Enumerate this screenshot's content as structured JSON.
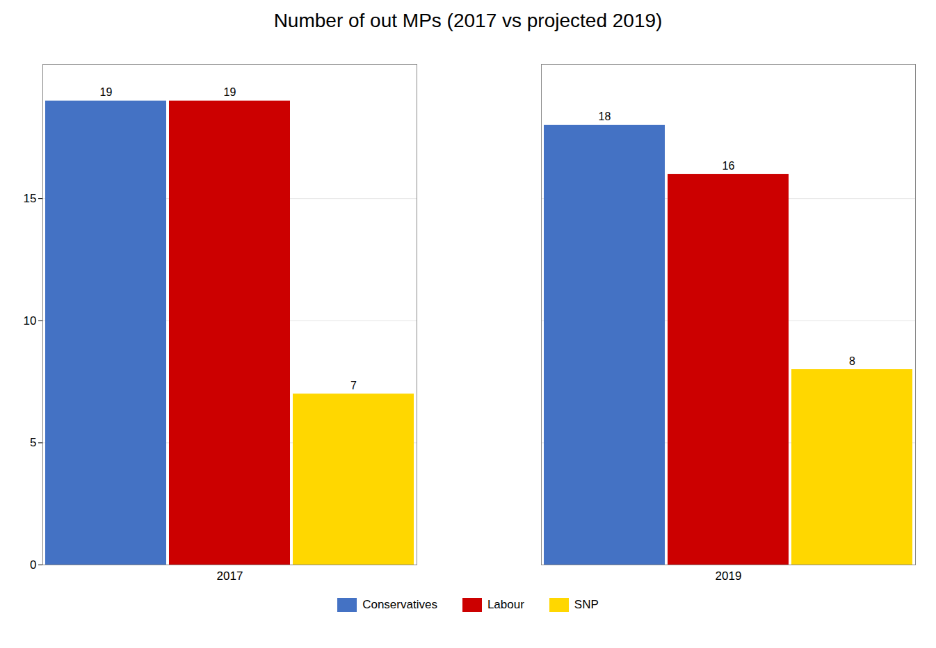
{
  "chart_data": {
    "type": "bar",
    "title": "Number of out MPs (2017 vs projected 2019)",
    "categories": [
      "2017",
      "2019"
    ],
    "series": [
      {
        "name": "Conservatives",
        "color": "#4472C4",
        "values": [
          19,
          18
        ]
      },
      {
        "name": "Labour",
        "color": "#CC0000",
        "values": [
          19,
          16
        ]
      },
      {
        "name": "SNP",
        "color": "#FFD700",
        "values": [
          7,
          8
        ]
      }
    ],
    "ylim": [
      0,
      20.5
    ],
    "yticks": [
      0,
      5,
      10,
      15
    ],
    "grid": true,
    "data_labels": true,
    "legend": "bottom"
  }
}
